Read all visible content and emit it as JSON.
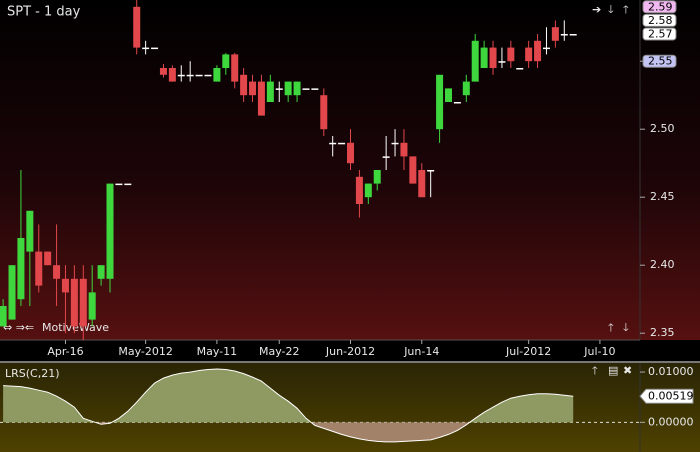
{
  "chart_data": [
    {
      "type": "candlestick",
      "title": "SPT - 1 day",
      "watermark": "MotiveWave",
      "open": [
        2.355,
        2.36,
        2.375,
        2.41,
        2.41,
        2.41,
        2.4,
        2.39,
        2.39,
        2.39,
        2.36,
        2.39,
        2.39,
        2.46,
        2.46,
        2.59,
        2.56,
        2.56,
        2.545,
        2.545,
        2.54,
        2.54,
        2.54,
        2.54,
        2.535,
        2.545,
        2.555,
        2.54,
        2.535,
        2.535,
        2.52,
        2.53,
        2.525,
        2.525,
        2.53,
        2.53,
        2.525,
        2.49,
        2.49,
        2.49,
        2.465,
        2.45,
        2.46,
        2.48,
        2.49,
        2.49,
        2.48,
        2.47,
        2.47,
        2.5,
        2.52,
        2.52,
        2.525,
        2.535,
        2.545,
        2.56,
        2.55,
        2.56,
        2.545,
        2.56,
        2.565,
        2.56,
        2.575,
        2.57,
        2.57
      ],
      "high": [
        2.375,
        2.4,
        2.47,
        2.44,
        2.43,
        2.41,
        2.43,
        2.4,
        2.4,
        2.4,
        2.4,
        2.4,
        2.46,
        2.46,
        2.46,
        2.595,
        2.565,
        2.56,
        2.548,
        2.547,
        2.547,
        2.55,
        2.54,
        2.54,
        2.547,
        2.556,
        2.556,
        2.545,
        2.54,
        2.54,
        2.54,
        2.535,
        2.535,
        2.535,
        2.53,
        2.53,
        2.53,
        2.495,
        2.49,
        2.5,
        2.47,
        2.46,
        2.47,
        2.495,
        2.5,
        2.5,
        2.48,
        2.475,
        2.47,
        2.54,
        2.53,
        2.52,
        2.54,
        2.57,
        2.565,
        2.565,
        2.56,
        2.565,
        2.545,
        2.565,
        2.57,
        2.575,
        2.58,
        2.58,
        2.57
      ],
      "low": [
        2.355,
        2.36,
        2.37,
        2.37,
        2.38,
        2.4,
        2.37,
        2.35,
        2.35,
        2.345,
        2.355,
        2.385,
        2.38,
        2.46,
        2.46,
        2.555,
        2.555,
        2.56,
        2.538,
        2.535,
        2.535,
        2.535,
        2.54,
        2.54,
        2.535,
        2.54,
        2.53,
        2.52,
        2.52,
        2.51,
        2.52,
        2.52,
        2.52,
        2.52,
        2.53,
        2.53,
        2.495,
        2.48,
        2.49,
        2.47,
        2.435,
        2.445,
        2.455,
        2.47,
        2.48,
        2.47,
        2.46,
        2.45,
        2.45,
        2.49,
        2.52,
        2.52,
        2.52,
        2.535,
        2.545,
        2.54,
        2.545,
        2.545,
        2.545,
        2.545,
        2.545,
        2.555,
        2.56,
        2.565,
        2.57
      ],
      "close": [
        2.37,
        2.4,
        2.42,
        2.44,
        2.385,
        2.4,
        2.39,
        2.38,
        2.355,
        2.355,
        2.38,
        2.4,
        2.46,
        2.46,
        2.46,
        2.56,
        2.56,
        2.56,
        2.54,
        2.535,
        2.54,
        2.54,
        2.54,
        2.54,
        2.545,
        2.555,
        2.535,
        2.525,
        2.525,
        2.51,
        2.535,
        2.53,
        2.535,
        2.535,
        2.53,
        2.53,
        2.5,
        2.49,
        2.49,
        2.475,
        2.445,
        2.46,
        2.47,
        2.48,
        2.49,
        2.48,
        2.46,
        2.45,
        2.47,
        2.54,
        2.53,
        2.52,
        2.535,
        2.565,
        2.56,
        2.545,
        2.55,
        2.55,
        2.545,
        2.55,
        2.55,
        2.56,
        2.565,
        2.57,
        2.57
      ],
      "up_color": "#3ed83e",
      "down_color": "#e2474b",
      "flat_color": "#ffffff",
      "ylim": [
        2.345,
        2.595
      ],
      "yticks": [
        2.35,
        {
          "value": 2.4,
          "label": "2.40"
        },
        2.45,
        {
          "value": 2.5,
          "label": "2.50"
        },
        2.55
      ],
      "xlim": [
        -0.35,
        71.5
      ],
      "xticks": [
        {
          "value": 7,
          "label": "Apr-16"
        },
        {
          "value": 16,
          "label": "May-2012"
        },
        {
          "value": 24,
          "label": "May-11"
        },
        {
          "value": 31,
          "label": "May-22"
        },
        {
          "value": 39,
          "label": "Jun-2012"
        },
        {
          "value": 47,
          "label": "Jun-14"
        },
        {
          "value": 59,
          "label": "Jul-2012"
        },
        {
          "value": 67,
          "label": "Jul-10"
        }
      ],
      "markers": [
        {
          "value": 2.59,
          "color": "#f2b8f2"
        },
        {
          "value": 2.58,
          "color": "#ffffff"
        },
        {
          "value": 2.57,
          "color": "#ffffff"
        },
        {
          "value": 2.55,
          "color": "#c4c4f4"
        }
      ]
    },
    {
      "type": "area",
      "title": "LRS(C,21)",
      "values": [
        0.0073,
        0.0072,
        0.0071,
        0.0068,
        0.0064,
        0.006,
        0.0052,
        0.0042,
        0.003,
        0.0008,
        0.0002,
        -0.0004,
        -0.0002,
        0.0008,
        0.0022,
        0.004,
        0.006,
        0.0078,
        0.0088,
        0.0094,
        0.0098,
        0.01,
        0.0103,
        0.0105,
        0.0106,
        0.0105,
        0.0102,
        0.0097,
        0.009,
        0.0082,
        0.0068,
        0.0054,
        0.0042,
        0.0028,
        0.0008,
        -0.0006,
        -0.0012,
        -0.0018,
        -0.0024,
        -0.0029,
        -0.0033,
        -0.0036,
        -0.0038,
        -0.0039,
        -0.0039,
        -0.0038,
        -0.0037,
        -0.0036,
        -0.0035,
        -0.003,
        -0.0024,
        -0.0016,
        -0.0005,
        0.0008,
        0.002,
        0.003,
        0.004,
        0.0048,
        0.0052,
        0.0055,
        0.0057,
        0.0057,
        0.0056,
        0.0054,
        0.00519
      ],
      "current": 0.00519,
      "pos_color": "#8e9a62",
      "neg_color": "#a3826a",
      "line_color": "#ffffff",
      "ylim": [
        -0.0059,
        0.0118
      ],
      "yticks": [
        {
          "value": 0,
          "label": "0.00000"
        },
        {
          "value": 0.01,
          "label": "0.01000"
        }
      ]
    }
  ]
}
